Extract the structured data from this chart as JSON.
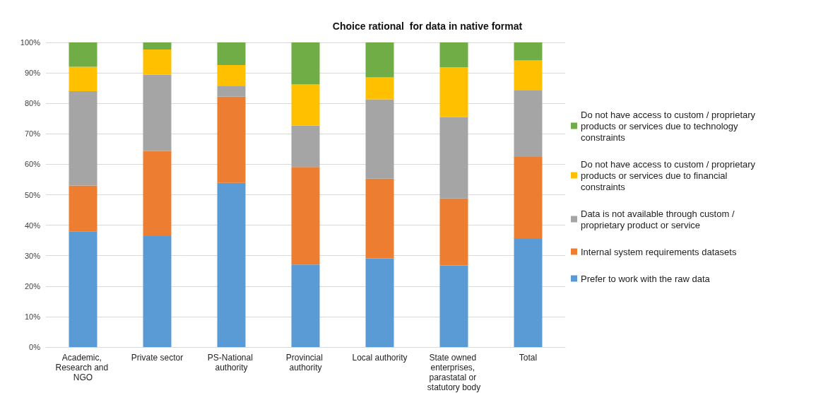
{
  "chart_data": {
    "type": "bar",
    "title": "Choice rational  for data in native format",
    "stacked": true,
    "categories": [
      "Academic, Research and NGO",
      "Private sector",
      "PS-National authority",
      "Provincial authority",
      "Local authority",
      "State owned enterprises, parastatal or statutory body",
      "Total"
    ],
    "series": [
      {
        "name": "Prefer to work with the raw data",
        "color": "#5b9bd5",
        "values": [
          38,
          36.4,
          53.9,
          27.1,
          29.1,
          26.8,
          35.5
        ]
      },
      {
        "name": "Internal system requirements datasets",
        "color": "#ed7d31",
        "values": [
          15,
          28,
          28.3,
          32,
          26.2,
          22,
          26.9
        ]
      },
      {
        "name": "Data is not available through custom / proprietary product or service",
        "color": "#a5a5a5",
        "values": [
          31,
          25,
          3.6,
          13.6,
          26,
          26.7,
          22
        ]
      },
      {
        "name": "Do not have access to custom / proprietary products or services due to financial constraints",
        "color": "#ffc000",
        "values": [
          8,
          8.3,
          6.8,
          13.5,
          7.2,
          16.4,
          9.7
        ]
      },
      {
        "name": "Do not have access to custom / proprietary products or services due to technology constraints",
        "color": "#70ad47",
        "values": [
          8,
          2.3,
          7.4,
          13.8,
          11.5,
          8.1,
          5.9
        ]
      }
    ],
    "ylim": [
      0,
      100
    ],
    "yticks": [
      {
        "value": 0,
        "label": "0%"
      },
      {
        "value": 10,
        "label": "10%"
      },
      {
        "value": 20,
        "label": "20%"
      },
      {
        "value": 30,
        "label": "30%"
      },
      {
        "value": 40,
        "label": "40%"
      },
      {
        "value": 50,
        "label": "50%"
      },
      {
        "value": 60,
        "label": "60%"
      },
      {
        "value": 70,
        "label": "70%"
      },
      {
        "value": 80,
        "label": "80%"
      },
      {
        "value": 90,
        "label": "90%"
      },
      {
        "value": 100,
        "label": "100%"
      }
    ],
    "grid": "y",
    "legend": "right"
  }
}
